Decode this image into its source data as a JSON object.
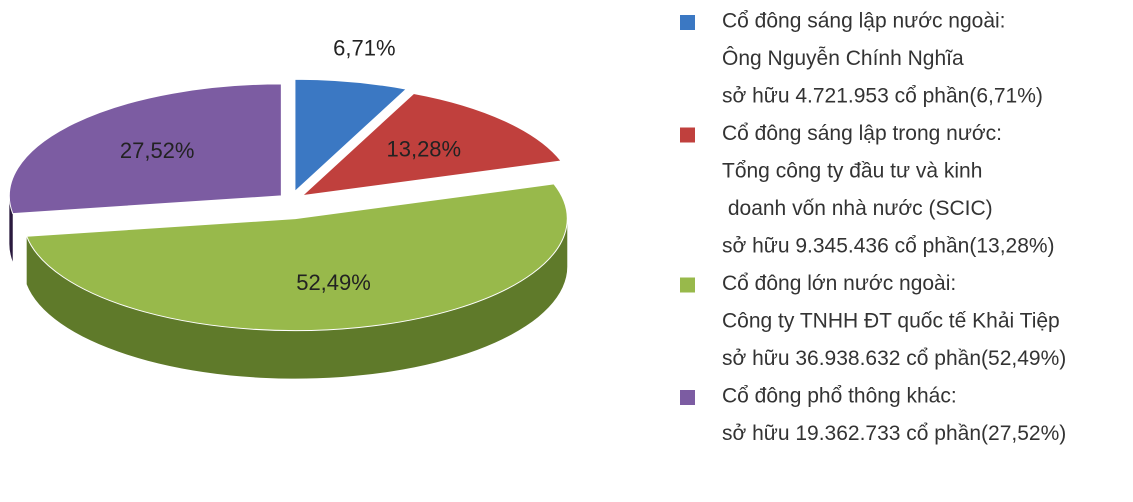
{
  "chart_data": {
    "type": "pie3d",
    "categories": [
      [
        "Cổ đông sáng lập nước ngoài:",
        "Ông Nguyễn Chính Nghĩa",
        "sở hữu 4.721.953 cổ phần(6,71%)"
      ],
      [
        "Cổ đông sáng lập trong nước:",
        "Tổng công ty đầu tư và kinh",
        " doanh vốn nhà nước (SCIC)",
        "sở hữu 9.345.436 cổ phần(13,28%)"
      ],
      [
        "Cổ đông lớn nước ngoài:",
        "Công ty TNHH ĐT quốc tế Khải Tiệp",
        "sở hữu 36.938.632 cổ phần(52,49%)"
      ],
      [
        "Cổ đông phổ thông khác:",
        "sở hữu 19.362.733 cổ phần(27,52%)"
      ]
    ],
    "values": [
      6.71,
      13.28,
      52.49,
      27.52
    ],
    "value_labels": [
      "6,71%",
      "13,28%",
      "52,49%",
      "27,52%"
    ],
    "colors": [
      "#3b78c3",
      "#c0403d",
      "#98b94b",
      "#7c5ca2"
    ],
    "side_colors": [
      "#24497a",
      "#4a1614",
      "#5f7a2a",
      "#2a1a3e"
    ],
    "legend": "right"
  }
}
